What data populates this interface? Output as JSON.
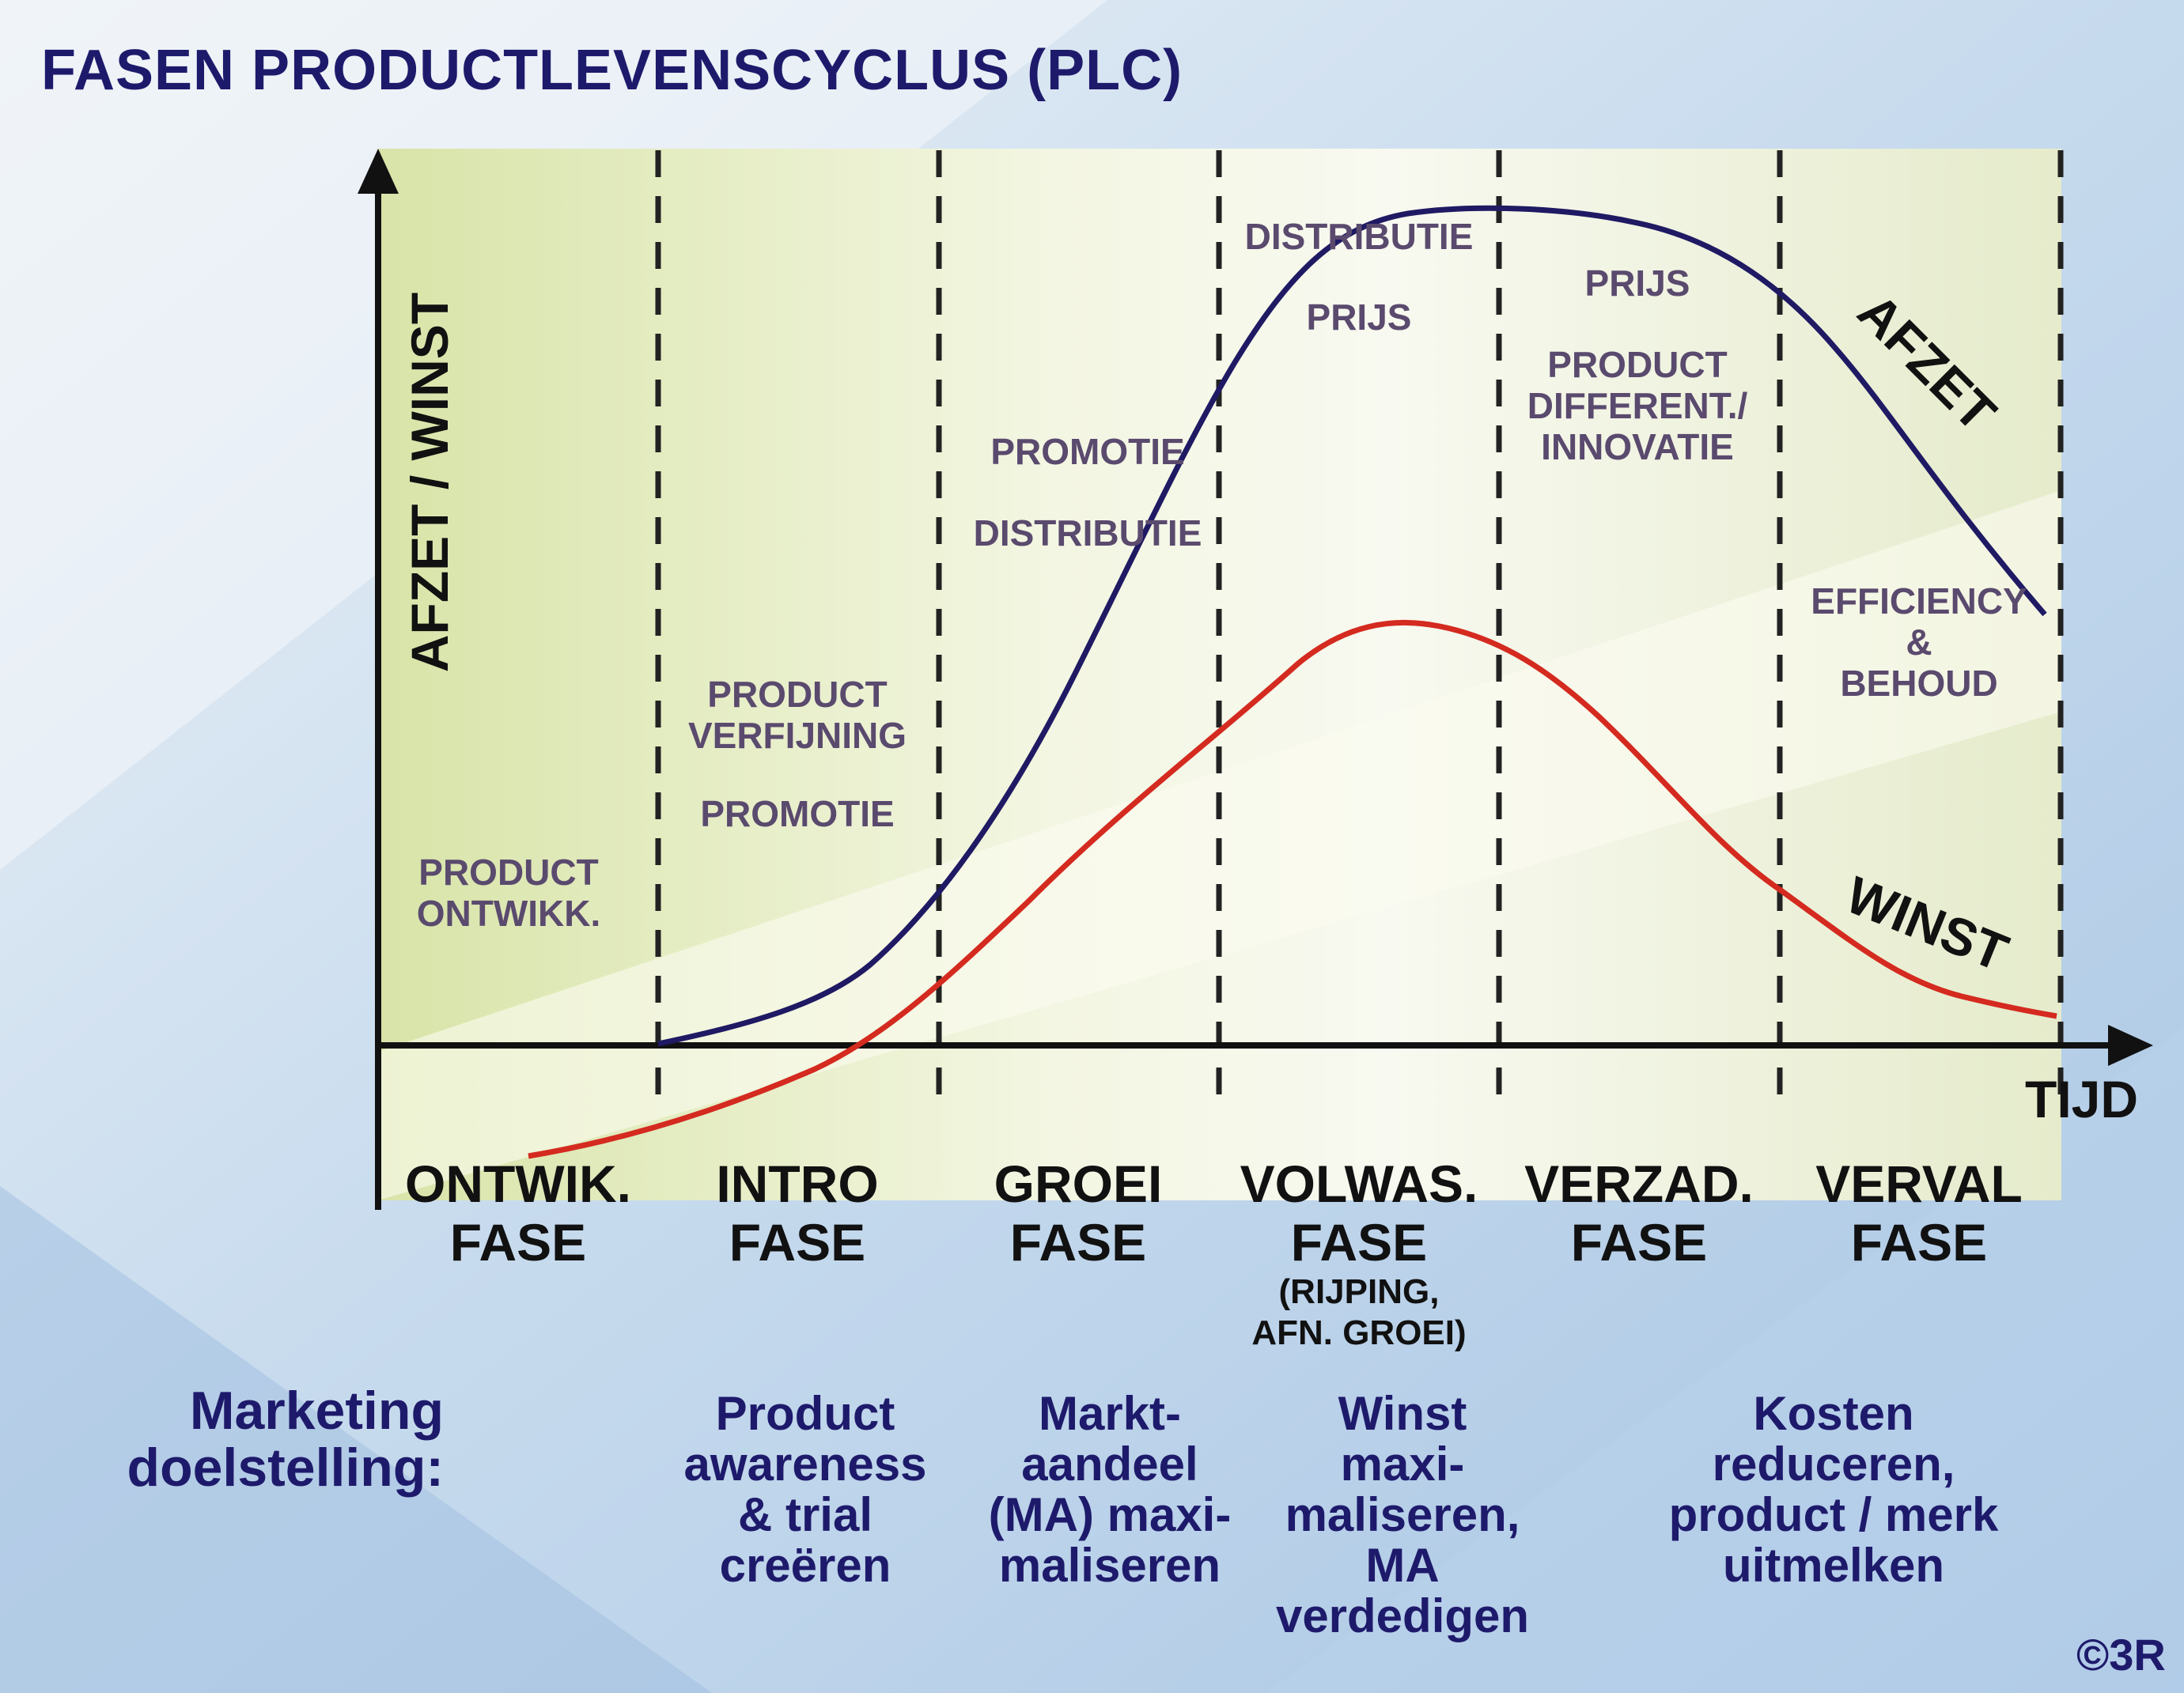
{
  "title": "FASEN PRODUCTLEVENSCYCLUS (PLC)",
  "y_axis_label": "AFZET / WINST",
  "x_axis_label": "TIJD",
  "curves": {
    "afzet": {
      "label": "AFZET",
      "color": "#1f1a63"
    },
    "winst": {
      "label": "WINST",
      "color": "#d42a1f"
    }
  },
  "phases": [
    {
      "name": "ONTWIK.",
      "sub1": "FASE",
      "sub2": ""
    },
    {
      "name": "INTRO",
      "sub1": "FASE",
      "sub2": ""
    },
    {
      "name": "GROEI",
      "sub1": "FASE",
      "sub2": ""
    },
    {
      "name": "VOLWAS.",
      "sub1": "FASE",
      "sub2": "(RIJPING,\nAFN. GROEI)"
    },
    {
      "name": "VERZAD.",
      "sub1": "FASE",
      "sub2": ""
    },
    {
      "name": "VERVAL",
      "sub1": "FASE",
      "sub2": ""
    }
  ],
  "notes": {
    "ontwik": "PRODUCT\nONTWIKK.",
    "intro_1": "PRODUCT\nVERFIJNING",
    "intro_2": "PROMOTIE",
    "groei_1": "PROMOTIE",
    "groei_2": "DISTRIBUTIE",
    "volwas_1": "DISTRIBUTIE",
    "volwas_2": "PRIJS",
    "verzad_1": "PRIJS",
    "verzad_2": "PRODUCT\nDIFFERENT./\nINNOVATIE",
    "verval": "EFFICIENCY\n&\nBEHOUD"
  },
  "marketing": {
    "label": "Marketing\ndoelstelling:",
    "intro": "Product\nawareness\n& trial\ncreëren",
    "groei": "Markt-\naandeel\n(MA) maxi-\nmaliseren",
    "volwas": "Winst\nmaxi-\nmaliseren,\nMA\nverdedigen",
    "verval": "Kosten\nreduceren,\nproduct / merk\nuitmelken"
  },
  "copyright": "©3R"
}
